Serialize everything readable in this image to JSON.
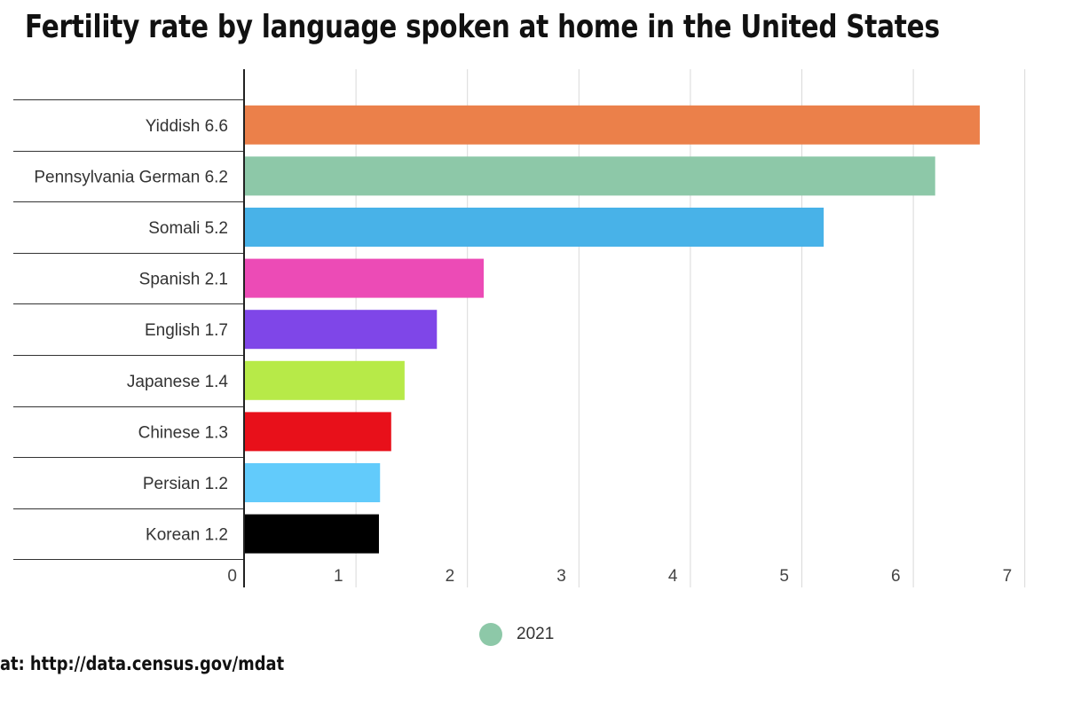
{
  "chart_data": {
    "type": "bar",
    "orientation": "horizontal",
    "title": "Fertility rate by language spoken at home in the United States",
    "categories": [
      "Yiddish 6.6",
      "Pennsylvania German 6.2",
      "Somali 5.2",
      "Spanish 2.1",
      "English 1.7",
      "Japanese 1.4",
      "Chinese 1.3",
      "Persian 1.2",
      "Korean 1.2"
    ],
    "values": [
      6.6,
      6.2,
      5.2,
      2.15,
      1.73,
      1.44,
      1.32,
      1.22,
      1.21
    ],
    "colors": [
      "#EB804A",
      "#8DC8A8",
      "#48B2E8",
      "#EC4BB6",
      "#7F46E8",
      "#B7EA48",
      "#E8101A",
      "#62CBFB",
      "#000000"
    ],
    "xlim": [
      0,
      7
    ],
    "xticks": [
      "0",
      "1",
      "2",
      "3",
      "4",
      "5",
      "6",
      "7"
    ],
    "xlabel": "",
    "ylabel": "",
    "grid": true,
    "legend": {
      "position": "bottom-center",
      "label": "2021",
      "color": "#8DC8A8"
    }
  },
  "source": "at: http://data.census.gov/mdat"
}
